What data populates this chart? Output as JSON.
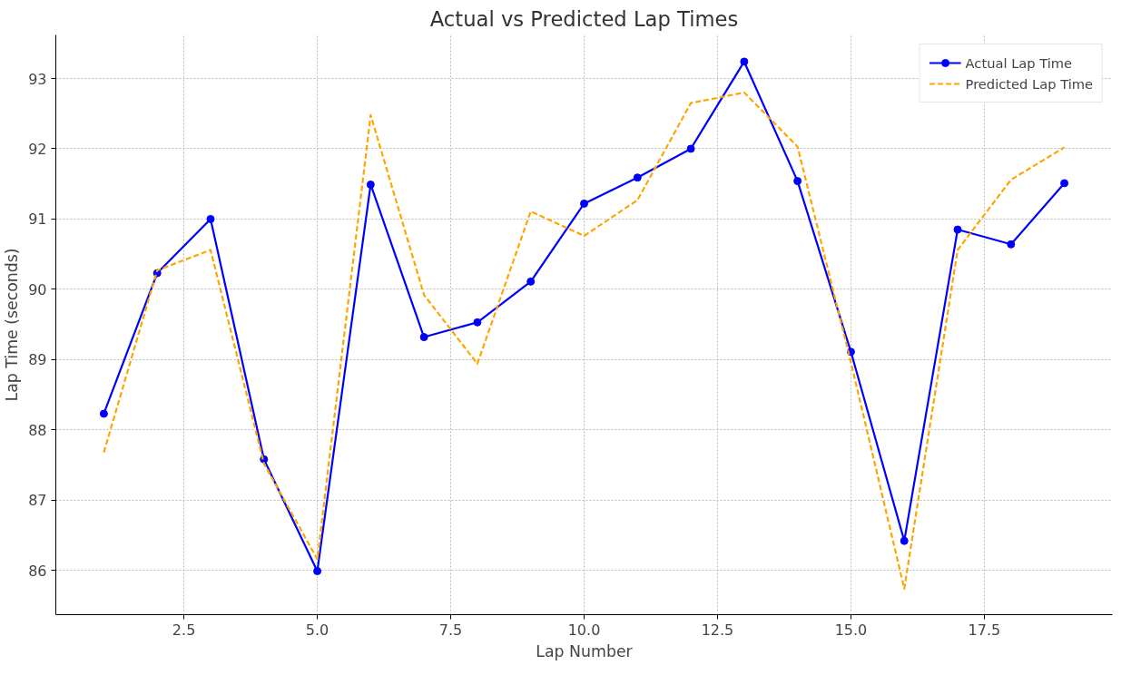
{
  "chart_data": {
    "type": "line",
    "title": "Actual vs Predicted Lap Times",
    "xlabel": "Lap Number",
    "ylabel": "Lap Time (seconds)",
    "x": [
      1,
      2,
      3,
      4,
      5,
      6,
      7,
      8,
      9,
      10,
      11,
      12,
      13,
      14,
      15,
      16,
      17,
      18,
      19
    ],
    "series": [
      {
        "name": "Actual Lap Time",
        "color": "#0000ff",
        "marker": "circle",
        "line_style": "solid",
        "values": [
          88.23,
          90.23,
          91.0,
          87.58,
          85.99,
          91.49,
          89.32,
          89.53,
          90.11,
          91.22,
          91.59,
          92.0,
          93.24,
          91.54,
          89.11,
          86.42,
          90.85,
          90.64,
          91.51
        ]
      },
      {
        "name": "Predicted Lap Time",
        "color": "#ffa500",
        "marker": "none",
        "line_style": "dashed",
        "values": [
          87.68,
          90.27,
          90.56,
          87.52,
          86.16,
          92.48,
          89.92,
          88.94,
          91.11,
          90.76,
          91.27,
          92.65,
          92.8,
          92.03,
          88.96,
          85.74,
          90.56,
          91.56,
          92.02
        ]
      }
    ],
    "xlim": [
      0.1,
      19.9
    ],
    "ylim": [
      85.37,
      93.62
    ],
    "xticks": [
      {
        "value": 2.5,
        "label": "2.5"
      },
      {
        "value": 5,
        "label": "5.0"
      },
      {
        "value": 7.5,
        "label": "7.5"
      },
      {
        "value": 10,
        "label": "10.0"
      },
      {
        "value": 12.5,
        "label": "12.5"
      },
      {
        "value": 15,
        "label": "15.0"
      },
      {
        "value": 17.5,
        "label": "17.5"
      }
    ],
    "yticks": [
      86,
      87,
      88,
      89,
      90,
      91,
      92,
      93
    ],
    "grid": true,
    "legend": "top right"
  }
}
